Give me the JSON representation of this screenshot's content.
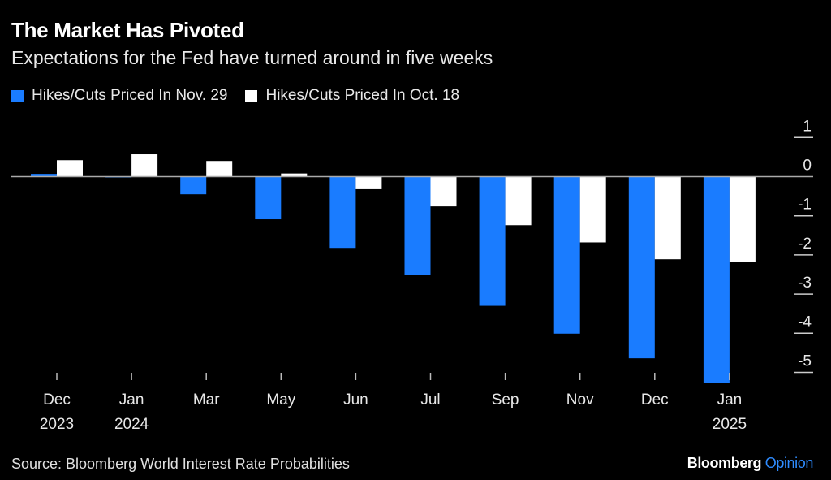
{
  "chart_data": {
    "type": "bar",
    "title": "The Market Has Pivoted",
    "subtitle": "Expectations for the Fed have turned around in five weeks",
    "categories": [
      [
        "Dec",
        "2023"
      ],
      [
        "Jan",
        "2024"
      ],
      [
        "Mar",
        ""
      ],
      [
        "May",
        ""
      ],
      [
        "Jun",
        ""
      ],
      [
        "Jul",
        ""
      ],
      [
        "Sep",
        ""
      ],
      [
        "Nov",
        ""
      ],
      [
        "Dec",
        ""
      ],
      [
        "Jan",
        "2025"
      ]
    ],
    "series": [
      {
        "name": "Hikes/Cuts Priced In Nov. 29",
        "color": "#1a7cff",
        "values": [
          0.07,
          -0.02,
          -0.45,
          -1.09,
          -1.82,
          -2.51,
          -3.3,
          -4.01,
          -4.64,
          -5.28
        ]
      },
      {
        "name": "Hikes/Cuts Priced In Oct. 18",
        "color": "#ffffff",
        "values": [
          0.42,
          0.57,
          0.4,
          0.08,
          -0.32,
          -0.76,
          -1.24,
          -1.68,
          -2.11,
          -2.18
        ]
      }
    ],
    "ylim": [
      -5.3,
      1
    ],
    "yticks": [
      "1",
      "0",
      "-1",
      "-2",
      "-3",
      "-4",
      "-5"
    ],
    "ytick_values": [
      1,
      0,
      -1,
      -2,
      -3,
      -4,
      -5
    ],
    "axis_side": "right",
    "legend_position": "top-left",
    "grid": false
  },
  "source": "Source: Bloomberg World Interest Rate Probabilities",
  "logo": {
    "brand": "Bloomberg",
    "product": "Opinion"
  }
}
